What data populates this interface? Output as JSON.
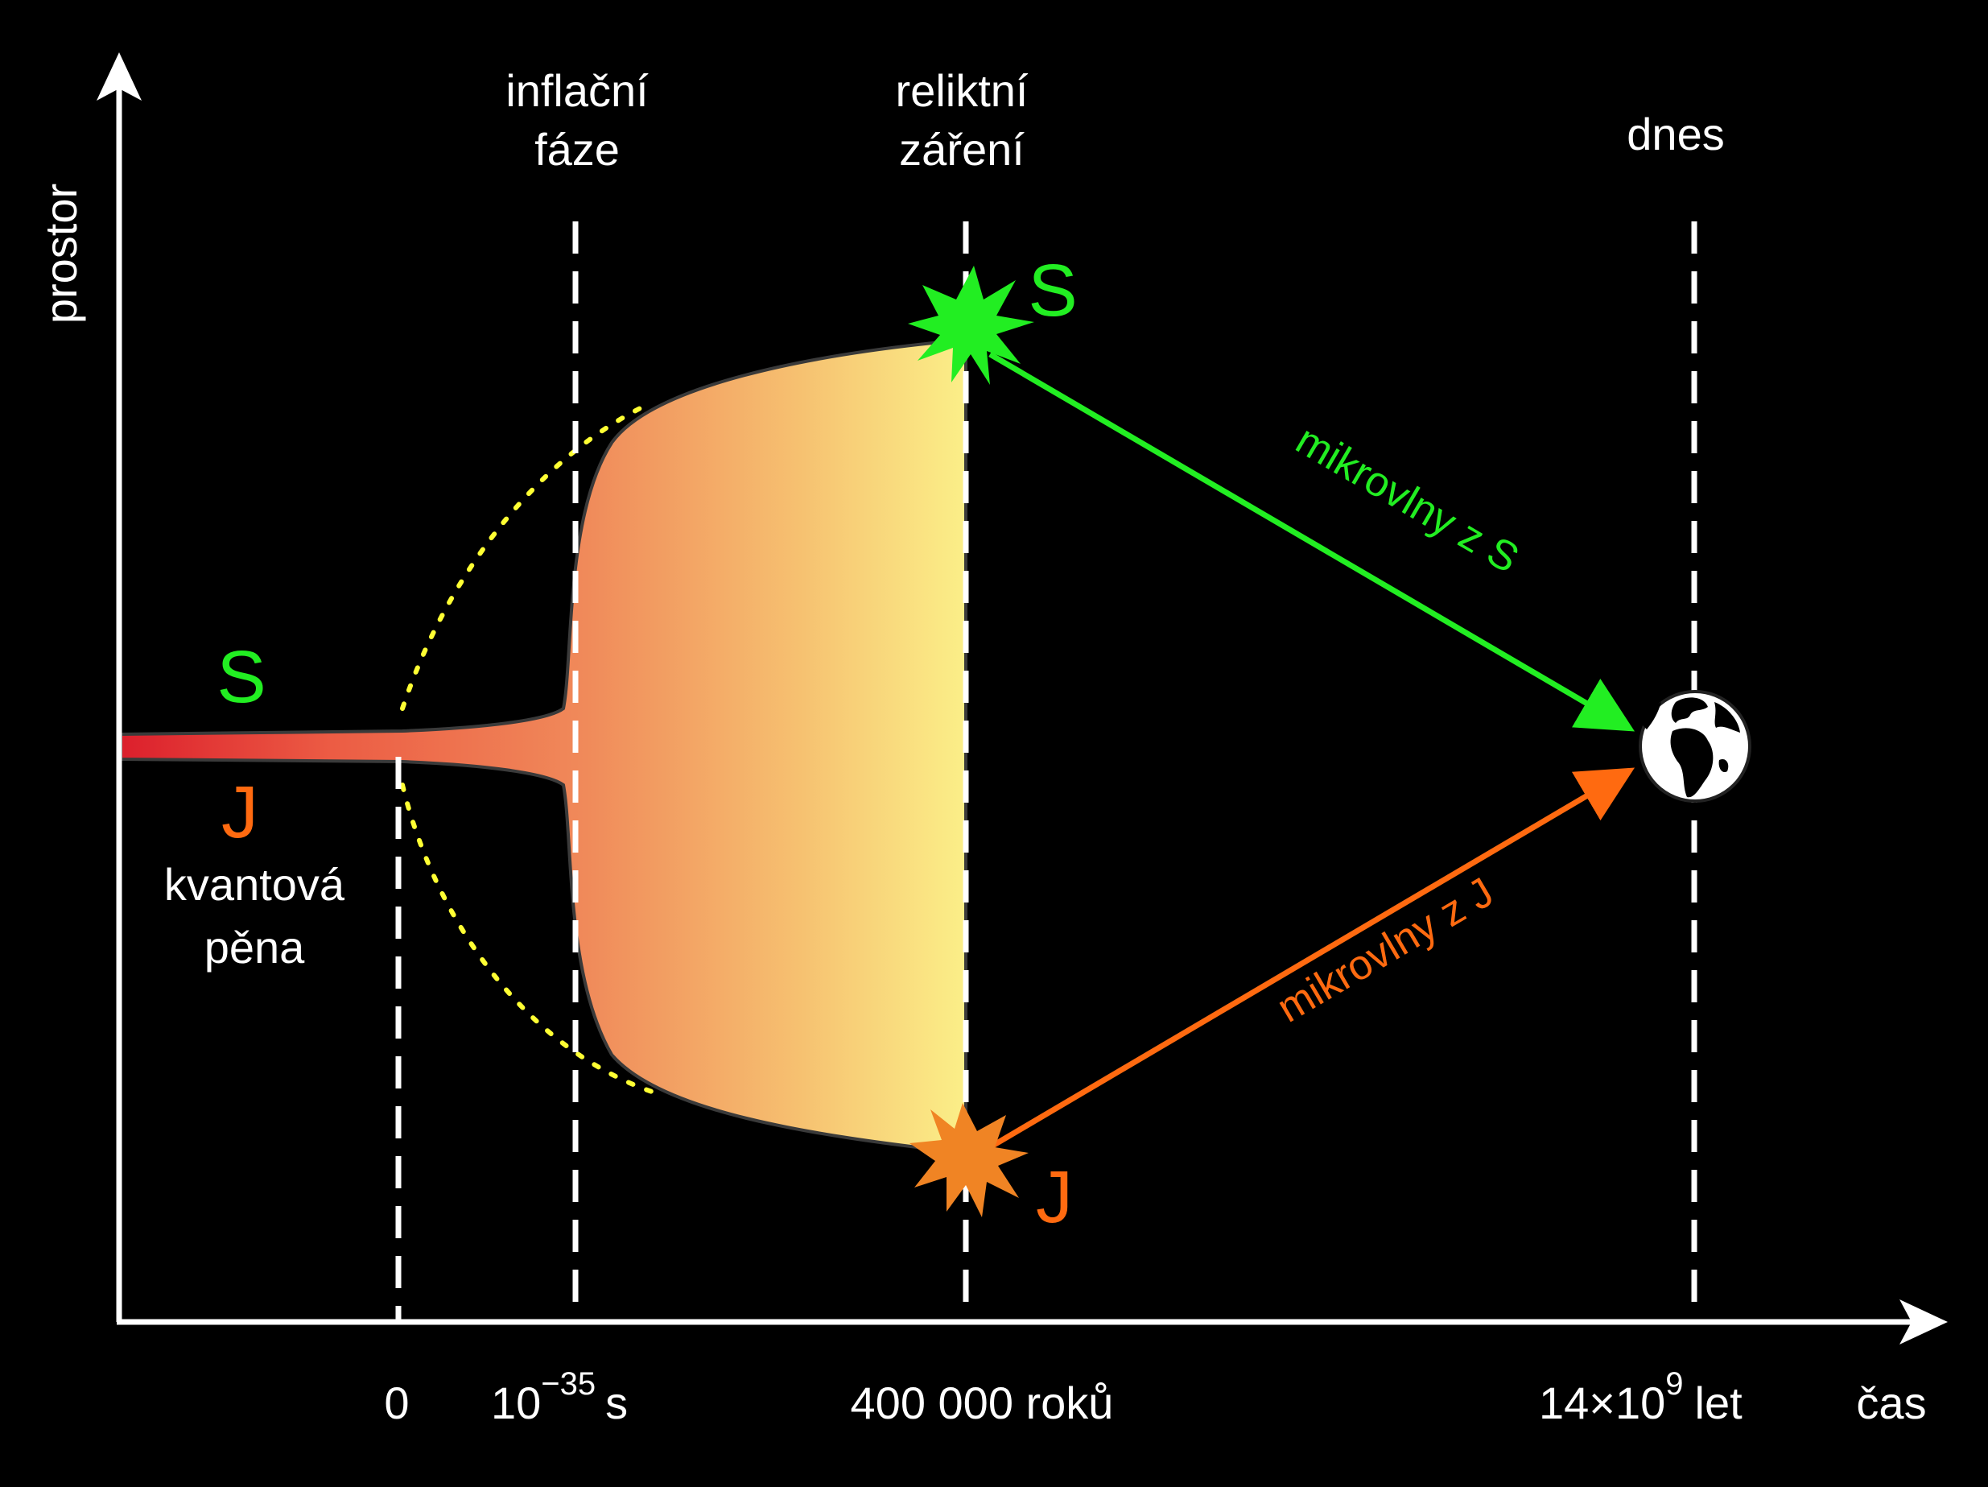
{
  "axes": {
    "y_label": "prostor",
    "x_label": "čas"
  },
  "phases": {
    "inflation_line1": "inflační",
    "inflation_line2": "fáze",
    "relic_line1": "reliktní",
    "relic_line2": "záření",
    "today": "dnes"
  },
  "ticks": {
    "zero": "0",
    "planck_base": "10",
    "planck_exp": "−35",
    "planck_unit": "s",
    "cmb": "400 000 roků",
    "now_base": "14×10",
    "now_exp": "9",
    "now_unit": "let"
  },
  "points": {
    "s_left": "S",
    "j_left": "J",
    "s_right": "S",
    "j_right": "J"
  },
  "foam": {
    "line1": "kvantová",
    "line2": "pěna"
  },
  "rays": {
    "from_s": "mikrovlny z S",
    "from_j": "mikrovlny z J"
  },
  "colors": {
    "background": "#000000",
    "s_green": "#22ee22",
    "j_orange": "#ff6a10",
    "foam_red": "#e0202a",
    "cmb_yellow": "#fbef88",
    "dotted_yellow": "#ffff33"
  },
  "icons": {
    "earth": "globe-icon",
    "burst_s": "starburst-icon",
    "burst_j": "starburst-icon"
  }
}
